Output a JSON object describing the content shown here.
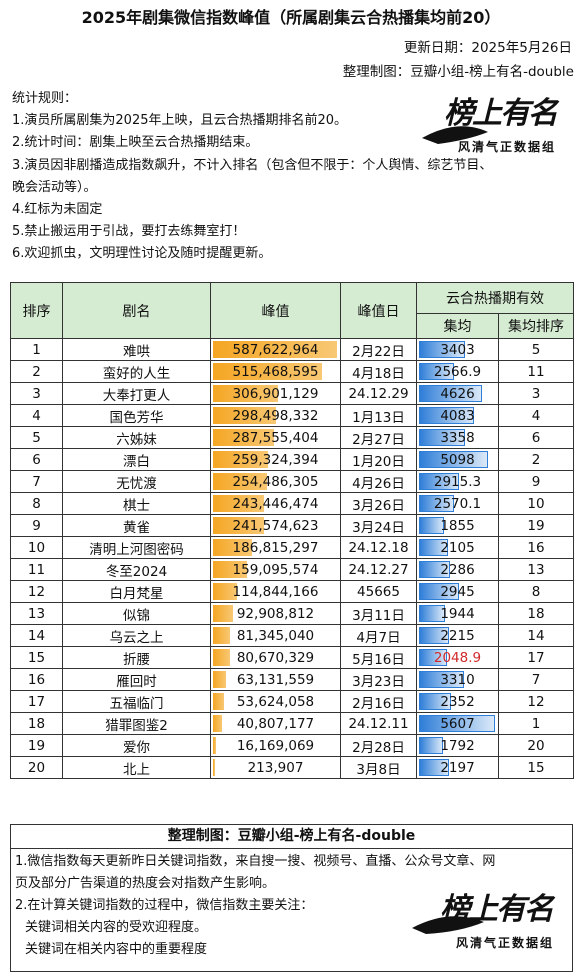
{
  "title": "2025年剧集微信指数峰值（所属剧集云合热播集均前20）",
  "update_date": "更新日期：2025年5月26日",
  "maker": "整理制图：豆瓣小组-榜上有名-double",
  "rules": [
    "统计规则：",
    "1.演员所属剧集为2025年上映，且云合热播期排名前20。",
    "2.统计时间：剧集上映至云合热播期结束。",
    "3.演员因非剧播造成指数飙升，不计入排名（包含但不限于：个人舆情、综艺节目、",
    "晚会活动等）。",
    "4.红标为未固定",
    "5.禁止搬运用于引战，要打去练舞室打！",
    "6.欢迎抓虫，文明理性讨论及随时提醒更新。"
  ],
  "logo": {
    "main": "榜上有名",
    "sub": "风清气正数据组"
  },
  "table": {
    "headers": {
      "rank": "排序",
      "name": "剧名",
      "peak": "峰值",
      "date": "峰值日",
      "yunhe": "云合热播期有效",
      "avg": "集均",
      "avg_rank": "集均排序"
    },
    "rows": [
      {
        "rank": "1",
        "name": "难哄",
        "peak": "587,622,964",
        "peak_num": 587622964,
        "date": "2月22日",
        "avg": "3403",
        "avg_num": 3403,
        "avg_rank": "5",
        "red": false
      },
      {
        "rank": "2",
        "name": "蛮好的人生",
        "peak": "515,468,595",
        "peak_num": 515468595,
        "date": "4月18日",
        "avg": "2566.9",
        "avg_num": 2566.9,
        "avg_rank": "11",
        "red": false
      },
      {
        "rank": "3",
        "name": "大奉打更人",
        "peak": "306,901,129",
        "peak_num": 306901129,
        "date": "24.12.29",
        "avg": "4626",
        "avg_num": 4626,
        "avg_rank": "3",
        "red": false
      },
      {
        "rank": "4",
        "name": "国色芳华",
        "peak": "298,498,332",
        "peak_num": 298498332,
        "date": "1月13日",
        "avg": "4083",
        "avg_num": 4083,
        "avg_rank": "4",
        "red": false
      },
      {
        "rank": "5",
        "name": "六姊妹",
        "peak": "287,555,404",
        "peak_num": 287555404,
        "date": "2月27日",
        "avg": "3358",
        "avg_num": 3358,
        "avg_rank": "6",
        "red": false
      },
      {
        "rank": "6",
        "name": "漂白",
        "peak": "259,324,394",
        "peak_num": 259324394,
        "date": "1月20日",
        "avg": "5098",
        "avg_num": 5098,
        "avg_rank": "2",
        "red": false
      },
      {
        "rank": "7",
        "name": "无忧渡",
        "peak": "254,486,305",
        "peak_num": 254486305,
        "date": "4月26日",
        "avg": "2915.3",
        "avg_num": 2915.3,
        "avg_rank": "9",
        "red": false
      },
      {
        "rank": "8",
        "name": "棋士",
        "peak": "243,446,474",
        "peak_num": 243446474,
        "date": "3月26日",
        "avg": "2570.1",
        "avg_num": 2570.1,
        "avg_rank": "10",
        "red": false
      },
      {
        "rank": "9",
        "name": "黄雀",
        "peak": "241,574,623",
        "peak_num": 241574623,
        "date": "3月24日",
        "avg": "1855",
        "avg_num": 1855,
        "avg_rank": "19",
        "red": false
      },
      {
        "rank": "10",
        "name": "清明上河图密码",
        "peak": "186,815,297",
        "peak_num": 186815297,
        "date": "24.12.18",
        "avg": "2105",
        "avg_num": 2105,
        "avg_rank": "16",
        "red": false
      },
      {
        "rank": "11",
        "name": "冬至2024",
        "peak": "159,095,574",
        "peak_num": 159095574,
        "date": "24.12.27",
        "avg": "2286",
        "avg_num": 2286,
        "avg_rank": "13",
        "red": false
      },
      {
        "rank": "12",
        "name": "白月梵星",
        "peak": "114,844,166",
        "peak_num": 114844166,
        "date": "45665",
        "avg": "2945",
        "avg_num": 2945,
        "avg_rank": "8",
        "red": false
      },
      {
        "rank": "13",
        "name": "似锦",
        "peak": "92,908,812",
        "peak_num": 92908812,
        "date": "3月11日",
        "avg": "1944",
        "avg_num": 1944,
        "avg_rank": "18",
        "red": false
      },
      {
        "rank": "14",
        "name": "乌云之上",
        "peak": "81,345,040",
        "peak_num": 81345040,
        "date": "4月7日",
        "avg": "2215",
        "avg_num": 2215,
        "avg_rank": "14",
        "red": false
      },
      {
        "rank": "15",
        "name": "折腰",
        "peak": "80,670,329",
        "peak_num": 80670329,
        "date": "5月16日",
        "avg": "2048.9",
        "avg_num": 2048.9,
        "avg_rank": "17",
        "red": true
      },
      {
        "rank": "16",
        "name": "雁回时",
        "peak": "63,131,559",
        "peak_num": 63131559,
        "date": "3月23日",
        "avg": "3310",
        "avg_num": 3310,
        "avg_rank": "7",
        "red": false
      },
      {
        "rank": "17",
        "name": "五福临门",
        "peak": "53,624,058",
        "peak_num": 53624058,
        "date": "2月16日",
        "avg": "2352",
        "avg_num": 2352,
        "avg_rank": "12",
        "red": false
      },
      {
        "rank": "18",
        "name": "猎罪图鉴2",
        "peak": "40,807,177",
        "peak_num": 40807177,
        "date": "24.12.11",
        "avg": "5607",
        "avg_num": 5607,
        "avg_rank": "1",
        "red": false
      },
      {
        "rank": "19",
        "name": "爱你",
        "peak": "16,169,069",
        "peak_num": 16169069,
        "date": "2月28日",
        "avg": "1792",
        "avg_num": 1792,
        "avg_rank": "20",
        "red": false
      },
      {
        "rank": "20",
        "name": "北上",
        "peak": "213,907",
        "peak_num": 213907,
        "date": "3月8日",
        "avg": "2197",
        "avg_num": 2197,
        "avg_rank": "15",
        "red": false
      }
    ]
  },
  "footer": {
    "head": "整理制图：豆瓣小组-榜上有名-double",
    "lines": [
      "1.微信指数每天更新昨日关键词指数，来自搜一搜、视频号、直播、公众号文章、网",
      "页及部分广告渠道的热度会对指数产生影响。",
      "2.在计算关键词指数的过程中，微信指数主要关注：",
      "关键词相关内容的受欢迎程度。",
      "关键词在相关内容中的重要程度"
    ]
  }
}
